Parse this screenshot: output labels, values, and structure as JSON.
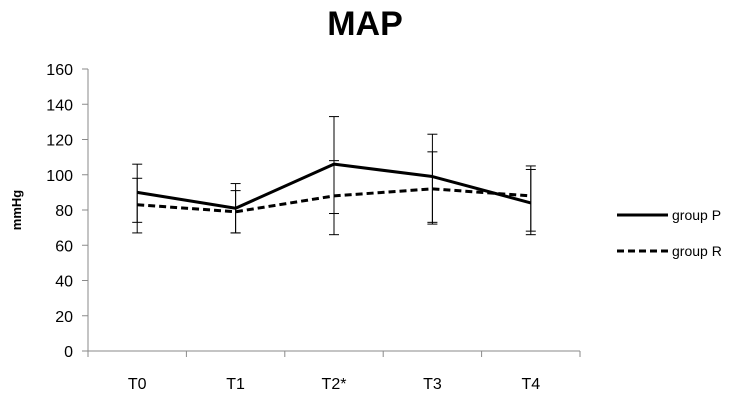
{
  "chart_data": {
    "type": "line",
    "title": "MAP",
    "xlabel": "",
    "ylabel": "mmHg",
    "categories": [
      "T0",
      "T1",
      "T2*",
      "T3",
      "T4"
    ],
    "ylim": [
      0,
      160
    ],
    "yticks": [
      0,
      20,
      40,
      60,
      80,
      100,
      120,
      140,
      160
    ],
    "grid": false,
    "legend_position": "right",
    "series": [
      {
        "name": "group P",
        "line_style": "solid",
        "color": "#000000",
        "values": [
          90,
          81,
          106,
          99,
          84
        ],
        "error_low": [
          73,
          67,
          78,
          72,
          68
        ],
        "error_high": [
          106,
          95,
          133,
          123,
          105
        ]
      },
      {
        "name": "group R",
        "line_style": "dashed",
        "color": "#000000",
        "values": [
          83,
          79,
          88,
          92,
          88
        ],
        "error_low": [
          67,
          67,
          66,
          73,
          66
        ],
        "error_high": [
          98,
          91,
          108,
          113,
          103
        ]
      }
    ]
  }
}
